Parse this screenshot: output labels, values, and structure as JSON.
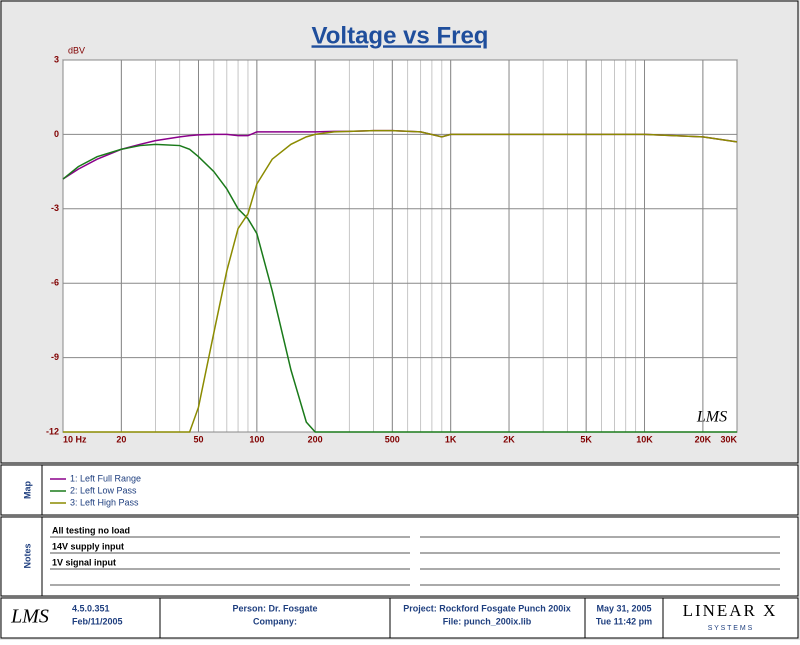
{
  "chart_data": {
    "type": "line",
    "title": "Voltage vs Freq",
    "y_label": "dBV",
    "log_x": true,
    "grid": true,
    "x": [
      10,
      12,
      15,
      20,
      25,
      30,
      40,
      45,
      50,
      60,
      70,
      80,
      90,
      100,
      120,
      150,
      180,
      200,
      250,
      300,
      400,
      500,
      700,
      900,
      1000,
      2000,
      5000,
      10000,
      20000,
      30000
    ],
    "series": [
      {
        "name": "1: Left Full Range",
        "color": "#8b008b",
        "values": [
          -1.8,
          -1.4,
          -1.0,
          -0.6,
          -0.4,
          -0.25,
          -0.1,
          -0.05,
          -0.02,
          0,
          0,
          -0.05,
          -0.05,
          0.1,
          0.1,
          0.1,
          0.1,
          0.1,
          0.12,
          0.12,
          0.15,
          0.15,
          0.1,
          -0.1,
          0,
          0,
          0,
          0,
          -0.1,
          -0.3
        ]
      },
      {
        "name": "2: Left Low Pass",
        "color": "#1a7a1a",
        "values": [
          -1.8,
          -1.3,
          -0.9,
          -0.6,
          -0.45,
          -0.4,
          -0.45,
          -0.6,
          -0.9,
          -1.5,
          -2.2,
          -3.0,
          -3.4,
          -4.0,
          -6.3,
          -9.5,
          -11.6,
          -12,
          -12,
          -12,
          -12,
          -12,
          -12,
          -12,
          -12,
          -12,
          -12,
          -12,
          -12,
          -12
        ]
      },
      {
        "name": "3: Left High Pass",
        "color": "#8b8b00",
        "values": [
          -12,
          -12,
          -12,
          -12,
          -12,
          -12,
          -12,
          -12,
          -11,
          -8,
          -5.5,
          -3.8,
          -3.2,
          -2.0,
          -1.0,
          -0.4,
          -0.1,
          0,
          0.1,
          0.12,
          0.15,
          0.15,
          0.1,
          -0.1,
          0,
          0,
          0,
          0,
          -0.1,
          -0.3
        ]
      }
    ],
    "xlim": [
      10,
      30000
    ],
    "xticks": [
      {
        "value": 10,
        "label": "10  Hz"
      },
      20,
      50,
      100,
      200,
      500,
      {
        "value": 1000,
        "label": "1K"
      },
      {
        "value": 2000,
        "label": "2K"
      },
      {
        "value": 5000,
        "label": "5K"
      },
      {
        "value": 10000,
        "label": "10K"
      },
      {
        "value": 20000,
        "label": "20K"
      },
      {
        "value": 30000,
        "label": "30K"
      }
    ],
    "ylim": [
      -12,
      3
    ],
    "yticks": [
      3,
      0,
      -3,
      -6,
      -9,
      -12
    ],
    "logo": "LMS"
  },
  "map": {
    "label": "Map"
  },
  "notes": {
    "label": "Notes",
    "lines": [
      "All testing no load",
      "14V supply input",
      "1V signal input"
    ]
  },
  "footer": {
    "logo": "LMS",
    "version": "4.5.0.351",
    "build_date": "Feb/11/2005",
    "person": "Person: Dr. Fosgate",
    "company": "Company:",
    "project": "Project: Rockford Fosgate Punch 200ix",
    "file": "File: punch_200ix.lib",
    "date": "May 31, 2005",
    "time": "Tue 11:42 pm",
    "brand": "LINEAR X",
    "brand_sub": "S Y S T E M S"
  }
}
